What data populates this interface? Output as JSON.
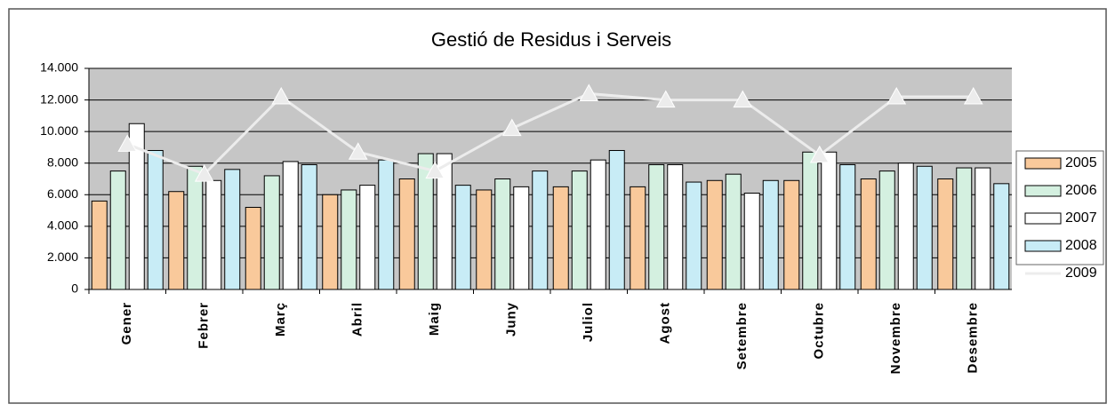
{
  "chart_data": {
    "type": "bar",
    "title": "Gestió de Residus i Serveis",
    "categories": [
      "Gener",
      "Febrer",
      "Març",
      "Abril",
      "Maig",
      "Juny",
      "Juliol",
      "Agost",
      "Setembre",
      "Octubre",
      "Novembre",
      "Desembre"
    ],
    "series": [
      {
        "name": "2005",
        "color": "#f9c99b",
        "type": "bar",
        "values": [
          5600,
          6200,
          5200,
          6000,
          7000,
          6300,
          6500,
          6500,
          6900,
          6900,
          7000,
          7000
        ]
      },
      {
        "name": "2006",
        "color": "#d4f0e0",
        "type": "bar",
        "values": [
          7500,
          7800,
          7200,
          6300,
          8600,
          7000,
          7500,
          7900,
          7300,
          8700,
          7500,
          7700
        ]
      },
      {
        "name": "2007",
        "color": "#ffffff",
        "type": "bar",
        "values": [
          10500,
          6900,
          8100,
          6600,
          8600,
          6500,
          8200,
          7900,
          6100,
          8700,
          8000,
          7700
        ]
      },
      {
        "name": "2008",
        "color": "#c8ecf6",
        "type": "bar",
        "values": [
          8800,
          7600,
          7900,
          8200,
          6600,
          7500,
          8800,
          6800,
          6900,
          7900,
          7800,
          6700
        ]
      },
      {
        "name": "2009",
        "color": "#ececec",
        "type": "line",
        "values": [
          9200,
          7300,
          12200,
          8700,
          7500,
          10200,
          12400,
          12000,
          12000,
          8500,
          12200,
          12200
        ]
      }
    ],
    "ylim": [
      0,
      14000
    ],
    "yticks": [
      0,
      {
        "value": 2000,
        "label": "2.000"
      },
      {
        "value": 4000,
        "label": "4.000"
      },
      {
        "value": 6000,
        "label": "6.000"
      },
      {
        "value": 8000,
        "label": "8.000"
      },
      {
        "value": 10000,
        "label": "10.000"
      },
      {
        "value": 12000,
        "label": "12.000"
      },
      {
        "value": 14000,
        "label": "14.000"
      }
    ],
    "grid": true,
    "legend": "right"
  }
}
